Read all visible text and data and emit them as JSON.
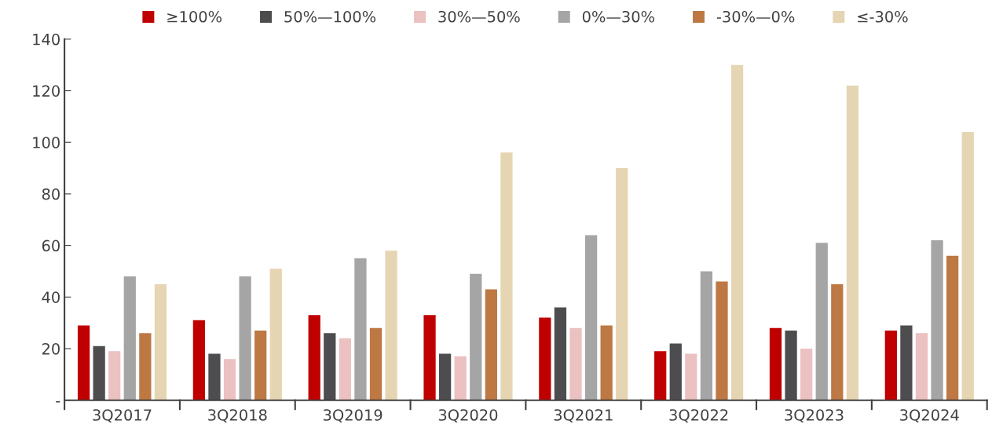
{
  "chart_data": {
    "type": "bar",
    "categories": [
      "3Q2017",
      "3Q2018",
      "3Q2019",
      "3Q2020",
      "3Q2021",
      "3Q2022",
      "3Q2023",
      "3Q2024"
    ],
    "series": [
      {
        "name": "≥100%",
        "color": "#c00000",
        "values": [
          29,
          31,
          33,
          33,
          32,
          19,
          28,
          27
        ]
      },
      {
        "name": "50%—100%",
        "color": "#4d4d4f",
        "values": [
          21,
          18,
          26,
          18,
          36,
          22,
          27,
          29
        ]
      },
      {
        "name": "30%—50%",
        "color": "#ebc1c1",
        "values": [
          19,
          16,
          24,
          17,
          28,
          18,
          20,
          26
        ]
      },
      {
        "name": "0%—30%",
        "color": "#a5a5a5",
        "values": [
          48,
          48,
          55,
          49,
          64,
          50,
          61,
          62
        ]
      },
      {
        "name": "-30%—0%",
        "color": "#bd7843",
        "values": [
          26,
          27,
          28,
          43,
          29,
          46,
          45,
          56
        ]
      },
      {
        "name": "≤-30%",
        "color": "#e6d5b2",
        "values": [
          45,
          51,
          58,
          96,
          90,
          130,
          122,
          104
        ]
      }
    ],
    "ylim": [
      0,
      140
    ],
    "yticks": [
      {
        "value": 0,
        "label": "-"
      },
      20,
      40,
      60,
      80,
      100,
      120,
      140
    ],
    "grid": false,
    "legend": "top"
  }
}
